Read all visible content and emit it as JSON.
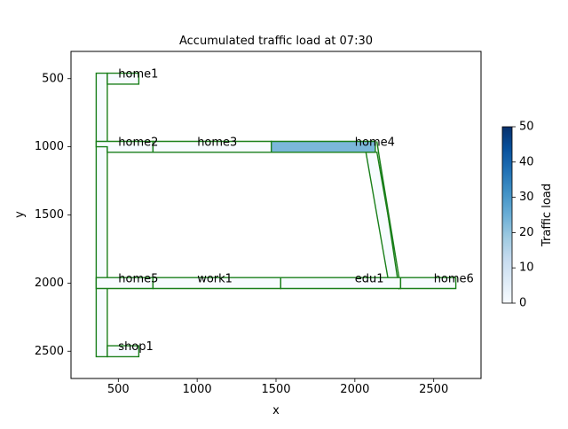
{
  "chart_data": {
    "type": "heatmap",
    "title": "Accumulated traffic load at 07:30",
    "xlabel": "x",
    "ylabel": "y",
    "xlim": [
      200,
      2800
    ],
    "ylim": [
      2700,
      300
    ],
    "y_inverted": true,
    "x_ticks": [
      500,
      1000,
      1500,
      2000,
      2500
    ],
    "y_ticks": [
      500,
      1000,
      1500,
      2000,
      2500
    ],
    "colorbar": {
      "label": "Traffic load",
      "min": 0,
      "max": 50,
      "ticks": [
        0,
        10,
        20,
        30,
        40,
        50
      ],
      "colormap": "Blues"
    },
    "edge_color": "#1a7f1a",
    "road_segments": [
      {
        "polygon": [
          [
            360,
            460
          ],
          [
            430,
            460
          ],
          [
            430,
            2540
          ],
          [
            360,
            2540
          ]
        ],
        "load": 0
      },
      {
        "polygon": [
          [
            430,
            460
          ],
          [
            630,
            460
          ],
          [
            630,
            540
          ],
          [
            430,
            540
          ]
        ],
        "load": 0
      },
      {
        "polygon": [
          [
            360,
            960
          ],
          [
            720,
            960
          ],
          [
            720,
            1040
          ],
          [
            430,
            1040
          ],
          [
            430,
            1000
          ],
          [
            360,
            1000
          ]
        ],
        "load": 0
      },
      {
        "polygon": [
          [
            720,
            960
          ],
          [
            1470,
            960
          ],
          [
            1470,
            1040
          ],
          [
            720,
            1040
          ]
        ],
        "load": 0
      },
      {
        "polygon": [
          [
            1470,
            960
          ],
          [
            2130,
            960
          ],
          [
            2130,
            1040
          ],
          [
            1470,
            1040
          ]
        ],
        "load": 23
      },
      {
        "polygon": [
          [
            2070,
            1040
          ],
          [
            2140,
            1040
          ],
          [
            2290,
            2030
          ],
          [
            2220,
            2030
          ]
        ],
        "load": 0
      },
      {
        "polygon": [
          [
            2140,
            960
          ],
          [
            2150,
            1040
          ],
          [
            2290,
            2030
          ],
          [
            2280,
            2040
          ]
        ],
        "load": 0
      },
      {
        "polygon": [
          [
            360,
            1960
          ],
          [
            720,
            1960
          ],
          [
            720,
            2040
          ],
          [
            360,
            2040
          ]
        ],
        "load": 0
      },
      {
        "polygon": [
          [
            720,
            1960
          ],
          [
            1530,
            1960
          ],
          [
            1530,
            2040
          ],
          [
            720,
            2040
          ]
        ],
        "load": 0
      },
      {
        "polygon": [
          [
            1530,
            1960
          ],
          [
            2290,
            1960
          ],
          [
            2290,
            2040
          ],
          [
            1530,
            2040
          ]
        ],
        "load": 0
      },
      {
        "polygon": [
          [
            2290,
            1960
          ],
          [
            2640,
            1960
          ],
          [
            2640,
            2040
          ],
          [
            2290,
            2040
          ]
        ],
        "load": 0
      },
      {
        "polygon": [
          [
            430,
            2460
          ],
          [
            630,
            2460
          ],
          [
            630,
            2540
          ],
          [
            430,
            2540
          ]
        ],
        "load": 0
      }
    ],
    "annotations": [
      {
        "text": "home1",
        "x": 500,
        "y": 470
      },
      {
        "text": "home2",
        "x": 500,
        "y": 970
      },
      {
        "text": "home3",
        "x": 1000,
        "y": 970
      },
      {
        "text": "home4",
        "x": 2000,
        "y": 970
      },
      {
        "text": "home5",
        "x": 500,
        "y": 1970
      },
      {
        "text": "work1",
        "x": 1000,
        "y": 1970
      },
      {
        "text": "edu1",
        "x": 2000,
        "y": 1970
      },
      {
        "text": "home6",
        "x": 2500,
        "y": 1970
      },
      {
        "text": "shop1",
        "x": 500,
        "y": 2470
      }
    ]
  }
}
